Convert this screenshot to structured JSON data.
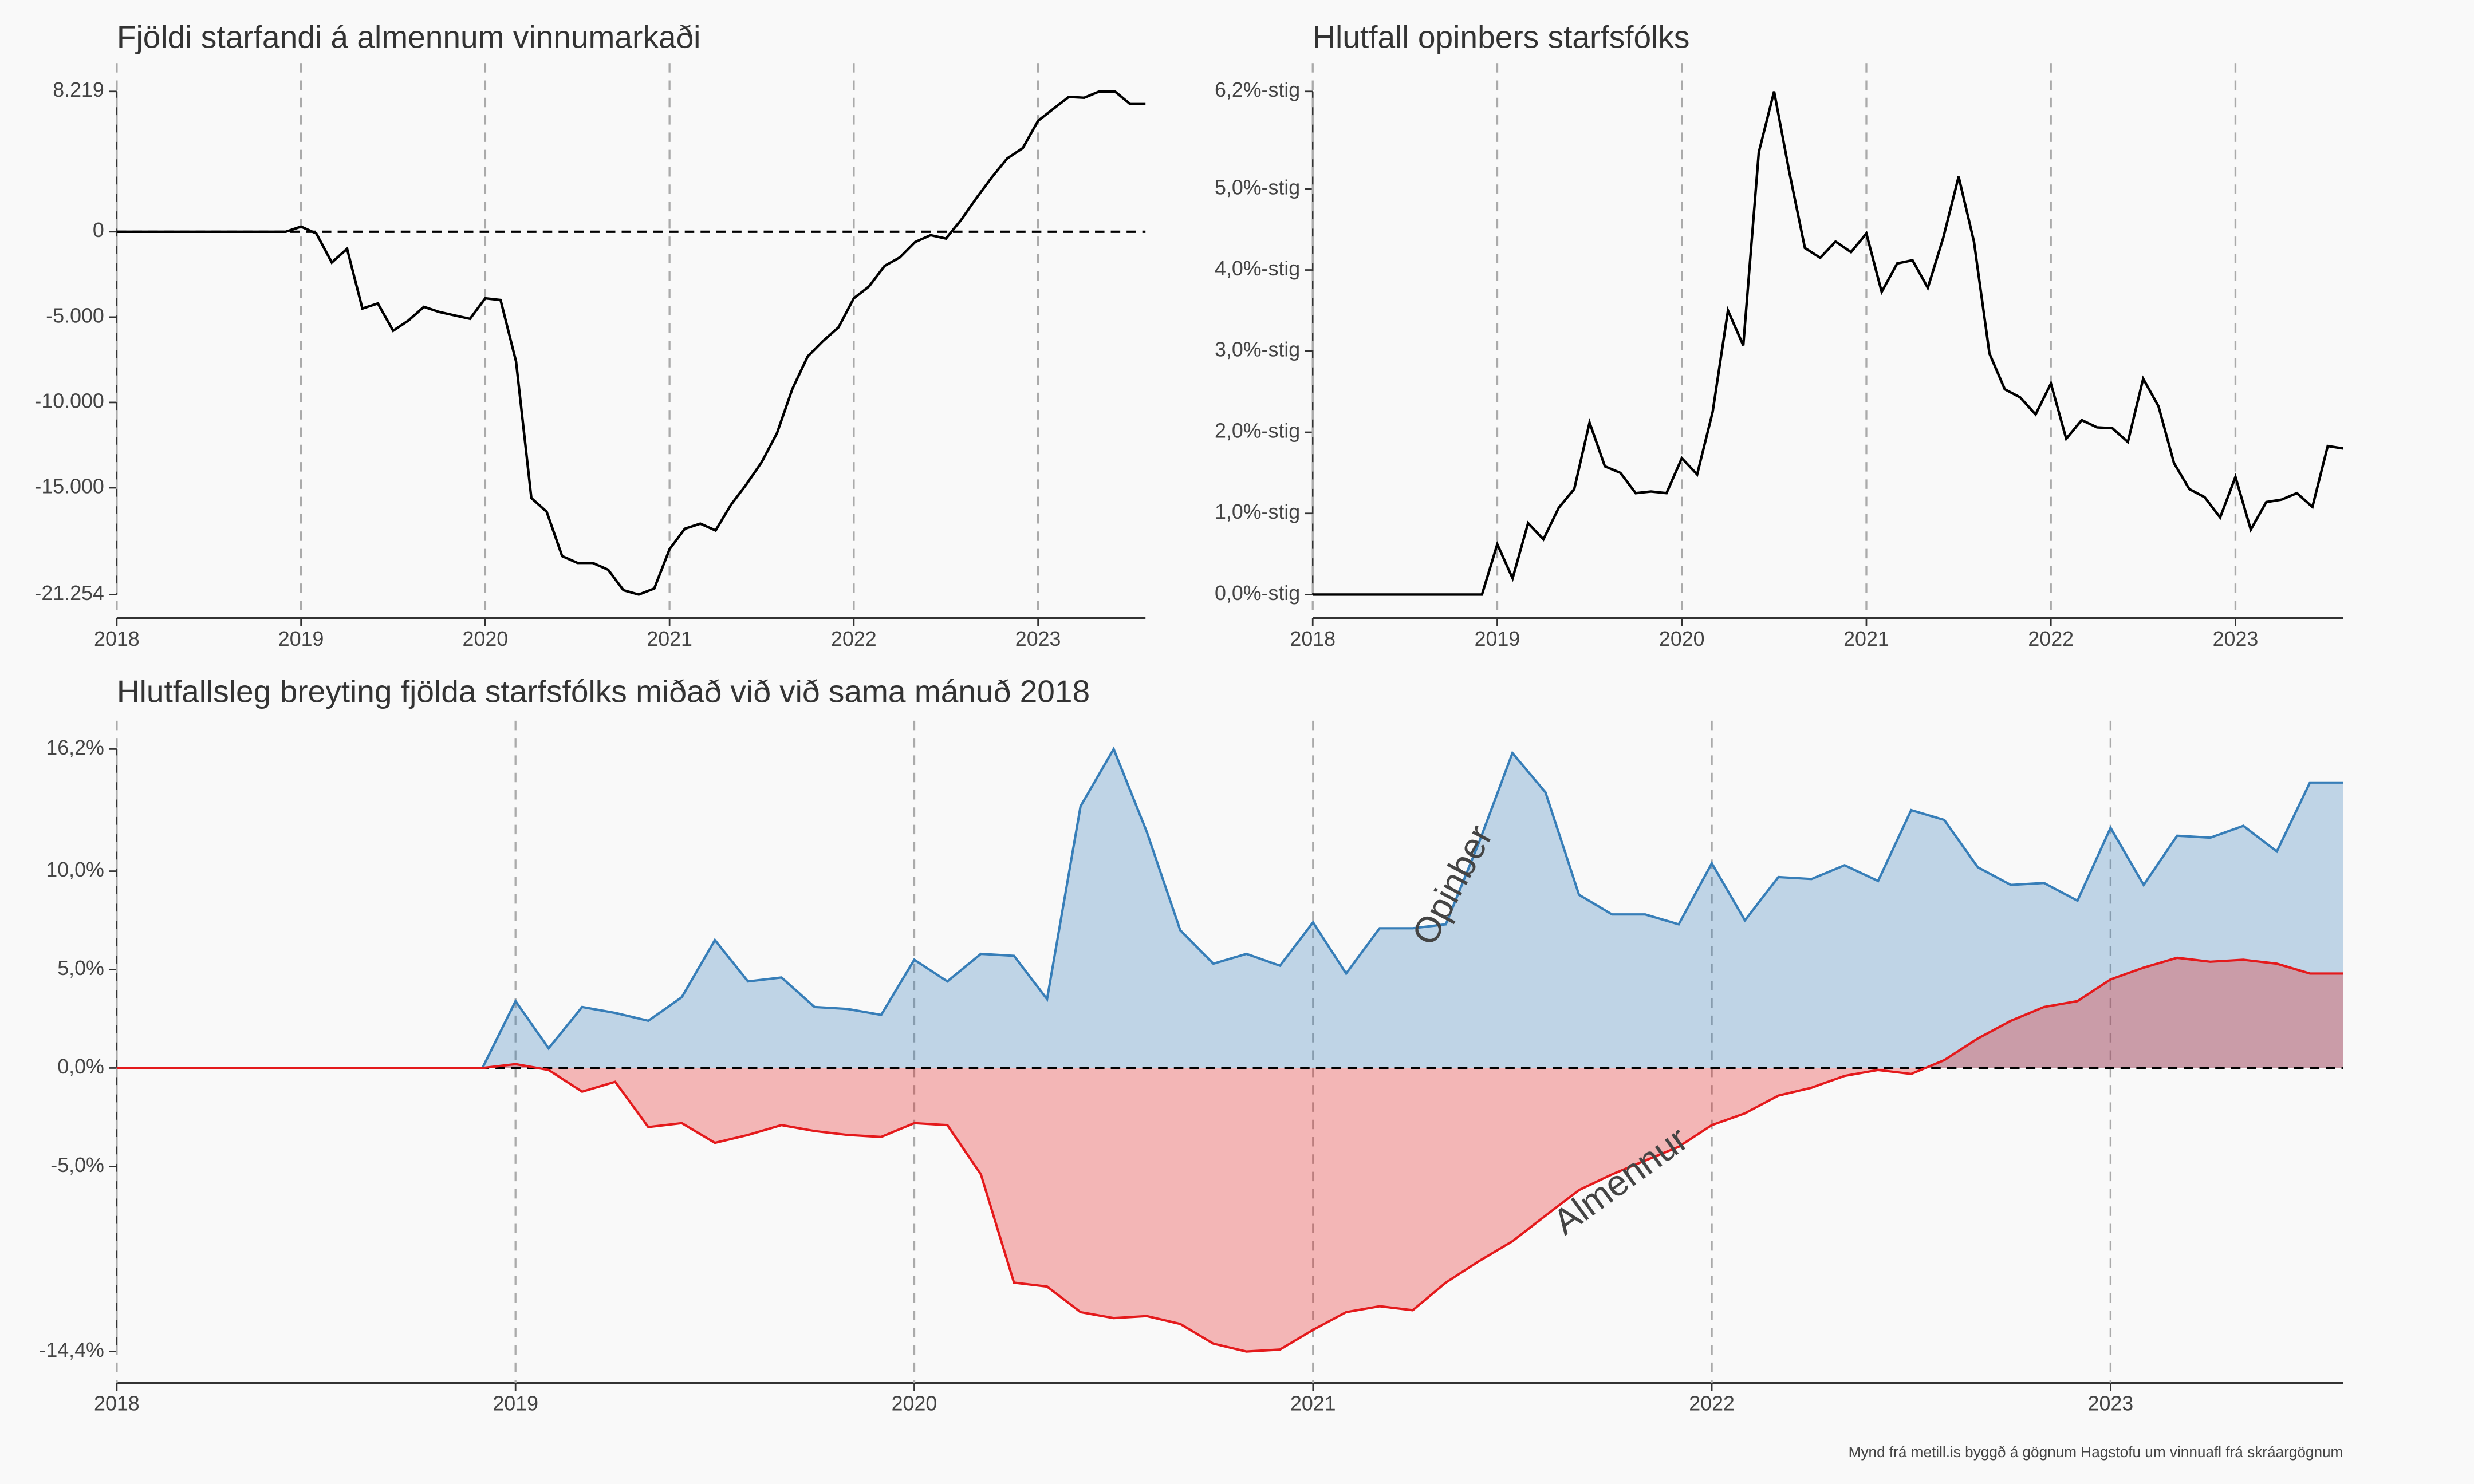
{
  "chart_data": [
    {
      "type": "line",
      "title": "Fjöldi starfandi á almennum vinnumarkaði",
      "color": "#000000",
      "reference_line": 0,
      "grid": "x",
      "x": [
        2018,
        2018.083,
        2018.167,
        2018.25,
        2018.333,
        2018.417,
        2018.5,
        2018.583,
        2018.667,
        2018.75,
        2018.833,
        2018.917,
        2019,
        2019.083,
        2019.167,
        2019.25,
        2019.333,
        2019.417,
        2019.5,
        2019.583,
        2019.667,
        2019.75,
        2019.833,
        2019.917,
        2020,
        2020.083,
        2020.167,
        2020.25,
        2020.333,
        2020.417,
        2020.5,
        2020.583,
        2020.667,
        2020.75,
        2020.833,
        2020.917,
        2021,
        2021.083,
        2021.167,
        2021.25,
        2021.333,
        2021.417,
        2021.5,
        2021.583,
        2021.667,
        2021.75,
        2021.833,
        2021.917,
        2022,
        2022.083,
        2022.167,
        2022.25,
        2022.333,
        2022.417,
        2022.5,
        2022.583,
        2022.667,
        2022.75,
        2022.833,
        2022.917,
        2023,
        2023.083,
        2023.167,
        2023.25,
        2023.333,
        2023.417,
        2023.5,
        2023.583
      ],
      "values": [
        0,
        0,
        0,
        0,
        0,
        0,
        0,
        0,
        0,
        0,
        0,
        0,
        300,
        -100,
        -1800,
        -1000,
        -4500,
        -4200,
        -5800,
        -5200,
        -4400,
        -4700,
        -4900,
        -5100,
        -3900,
        -4000,
        -7600,
        -15600,
        -16400,
        -19000,
        -19400,
        -19400,
        -19800,
        -21000,
        -21254,
        -20900,
        -18600,
        -17400,
        -17100,
        -17500,
        -16000,
        -14800,
        -13500,
        -11800,
        -9200,
        -7300,
        -6400,
        -5600,
        -3900,
        -3200,
        -2000,
        -1500,
        -600,
        -200,
        -400,
        700,
        2000,
        3200,
        4300,
        4900,
        6500,
        7200,
        7900,
        7850,
        8219,
        8219,
        7480,
        7480
      ],
      "xlim": [
        2018,
        2023.583
      ],
      "xticks": [
        2018,
        2019,
        2020,
        2021,
        2022,
        2023
      ],
      "ylim": [
        -21254,
        8219
      ],
      "yticks": [
        {
          "value": 8219,
          "label": "8.219"
        },
        0,
        {
          "value": -5000,
          "label": "-5.000"
        },
        {
          "value": -10000,
          "label": "-10.000"
        },
        {
          "value": -15000,
          "label": "-15.000"
        },
        {
          "value": -21254,
          "label": "-21.254"
        }
      ]
    },
    {
      "type": "line",
      "title": "Hlutfall opinbers starfsfólks",
      "color": "#000000",
      "grid": "x",
      "x": [
        2018,
        2018.083,
        2018.167,
        2018.25,
        2018.333,
        2018.417,
        2018.5,
        2018.583,
        2018.667,
        2018.75,
        2018.833,
        2018.917,
        2019,
        2019.083,
        2019.167,
        2019.25,
        2019.333,
        2019.417,
        2019.5,
        2019.583,
        2019.667,
        2019.75,
        2019.833,
        2019.917,
        2020,
        2020.083,
        2020.167,
        2020.25,
        2020.333,
        2020.417,
        2020.5,
        2020.583,
        2020.667,
        2020.75,
        2020.833,
        2020.917,
        2021,
        2021.083,
        2021.167,
        2021.25,
        2021.333,
        2021.417,
        2021.5,
        2021.583,
        2021.667,
        2021.75,
        2021.833,
        2021.917,
        2022,
        2022.083,
        2022.167,
        2022.25,
        2022.333,
        2022.417,
        2022.5,
        2022.583,
        2022.667,
        2022.75,
        2022.833,
        2022.917,
        2023,
        2023.083,
        2023.167,
        2023.25,
        2023.333,
        2023.417,
        2023.5,
        2023.583
      ],
      "values": [
        0,
        0,
        0,
        0,
        0,
        0,
        0,
        0,
        0,
        0,
        0,
        0,
        0.62,
        0.2,
        0.88,
        0.68,
        1.07,
        1.3,
        2.12,
        1.58,
        1.5,
        1.25,
        1.27,
        1.25,
        1.68,
        1.48,
        2.25,
        3.5,
        3.07,
        5.45,
        6.2,
        5.2,
        4.27,
        4.15,
        4.35,
        4.22,
        4.45,
        3.73,
        4.08,
        4.12,
        3.78,
        4.4,
        5.15,
        4.35,
        2.97,
        2.53,
        2.43,
        2.22,
        2.6,
        1.92,
        2.15,
        2.06,
        2.05,
        1.88,
        2.66,
        2.32,
        1.62,
        1.3,
        1.2,
        0.95,
        1.45,
        0.8,
        1.14,
        1.17,
        1.25,
        1.08,
        1.83,
        1.8
      ],
      "xlim": [
        2018,
        2023.583
      ],
      "xticks": [
        2018,
        2019,
        2020,
        2021,
        2022,
        2023
      ],
      "ylim": [
        0,
        6.2
      ],
      "yticks": [
        {
          "value": 6.2,
          "label": "6,2%-stig"
        },
        {
          "value": 5,
          "label": "5,0%-stig"
        },
        {
          "value": 4,
          "label": "4,0%-stig"
        },
        {
          "value": 3,
          "label": "3,0%-stig"
        },
        {
          "value": 2,
          "label": "2,0%-stig"
        },
        {
          "value": 1,
          "label": "1,0%-stig"
        },
        {
          "value": 0,
          "label": "0,0%-stig"
        }
      ]
    },
    {
      "type": "area",
      "title": "Hlutfallsleg breyting fjölda starfsfólks miðað við við sama mánuð 2018",
      "reference_line": 0,
      "grid": "x",
      "x": [
        2018,
        2018.083,
        2018.167,
        2018.25,
        2018.333,
        2018.417,
        2018.5,
        2018.583,
        2018.667,
        2018.75,
        2018.833,
        2018.917,
        2019,
        2019.083,
        2019.167,
        2019.25,
        2019.333,
        2019.417,
        2019.5,
        2019.583,
        2019.667,
        2019.75,
        2019.833,
        2019.917,
        2020,
        2020.083,
        2020.167,
        2020.25,
        2020.333,
        2020.417,
        2020.5,
        2020.583,
        2020.667,
        2020.75,
        2020.833,
        2020.917,
        2021,
        2021.083,
        2021.167,
        2021.25,
        2021.333,
        2021.417,
        2021.5,
        2021.583,
        2021.667,
        2021.75,
        2021.833,
        2021.917,
        2022,
        2022.083,
        2022.167,
        2022.25,
        2022.333,
        2022.417,
        2022.5,
        2022.583,
        2022.667,
        2022.75,
        2022.833,
        2022.917,
        2023,
        2023.083,
        2023.167,
        2023.25,
        2023.333,
        2023.417,
        2023.5,
        2023.583
      ],
      "series": [
        {
          "name": "Opinber",
          "color": "#377eb8",
          "values": [
            0,
            0,
            0,
            0,
            0,
            0,
            0,
            0,
            0,
            0,
            0,
            0,
            3.4,
            1,
            3.1,
            2.8,
            2.4,
            3.6,
            6.5,
            4.4,
            4.6,
            3.1,
            3,
            2.7,
            5.5,
            4.4,
            5.8,
            5.7,
            3.5,
            13.3,
            16.2,
            12,
            7,
            5.3,
            5.8,
            5.2,
            7.4,
            4.8,
            7.1,
            7.1,
            7.3,
            11.5,
            16,
            14,
            8.8,
            7.8,
            7.8,
            7.3,
            10.4,
            7.5,
            9.7,
            9.6,
            10.3,
            9.5,
            13.1,
            12.6,
            10.2,
            9.3,
            9.4,
            8.5,
            12.2,
            9.3,
            11.8,
            11.7,
            12.3,
            11,
            14.5,
            14.5
          ]
        },
        {
          "name": "Almennur",
          "color": "#e41a1c",
          "values": [
            0,
            0,
            0,
            0,
            0,
            0,
            0,
            0,
            0,
            0,
            0,
            0,
            0.2,
            -0.1,
            -1.2,
            -0.7,
            -3,
            -2.8,
            -3.8,
            -3.4,
            -2.9,
            -3.2,
            -3.4,
            -3.5,
            -2.8,
            -2.9,
            -5.4,
            -10.9,
            -11.1,
            -12.4,
            -12.7,
            -12.6,
            -13,
            -14,
            -14.4,
            -14.3,
            -13.3,
            -12.4,
            -12.1,
            -12.3,
            -10.9,
            -9.8,
            -8.8,
            -7.5,
            -6.2,
            -5.4,
            -4.7,
            -4,
            -2.9,
            -2.3,
            -1.4,
            -1,
            -0.4,
            -0.1,
            -0.3,
            0.4,
            1.5,
            2.4,
            3.1,
            3.4,
            4.5,
            5.1,
            5.6,
            5.4,
            5.5,
            5.3,
            4.8,
            4.8
          ]
        }
      ],
      "xlim": [
        2018,
        2023.583
      ],
      "xticks": [
        2018,
        2019,
        2020,
        2021,
        2022,
        2023
      ],
      "ylim": [
        -14.4,
        16.2
      ],
      "yticks": [
        {
          "value": 16.2,
          "label": "16,2%"
        },
        {
          "value": 10,
          "label": "10,0%"
        },
        {
          "value": 5,
          "label": "5,0%"
        },
        {
          "value": 0,
          "label": "0,0%"
        },
        {
          "value": -5,
          "label": "-5,0%"
        },
        {
          "value": -14.4,
          "label": "-14,4%"
        }
      ]
    }
  ],
  "caption": "Mynd frá metill.is byggð á gögnum Hagstofu um vinnuafl frá skráargögnum"
}
